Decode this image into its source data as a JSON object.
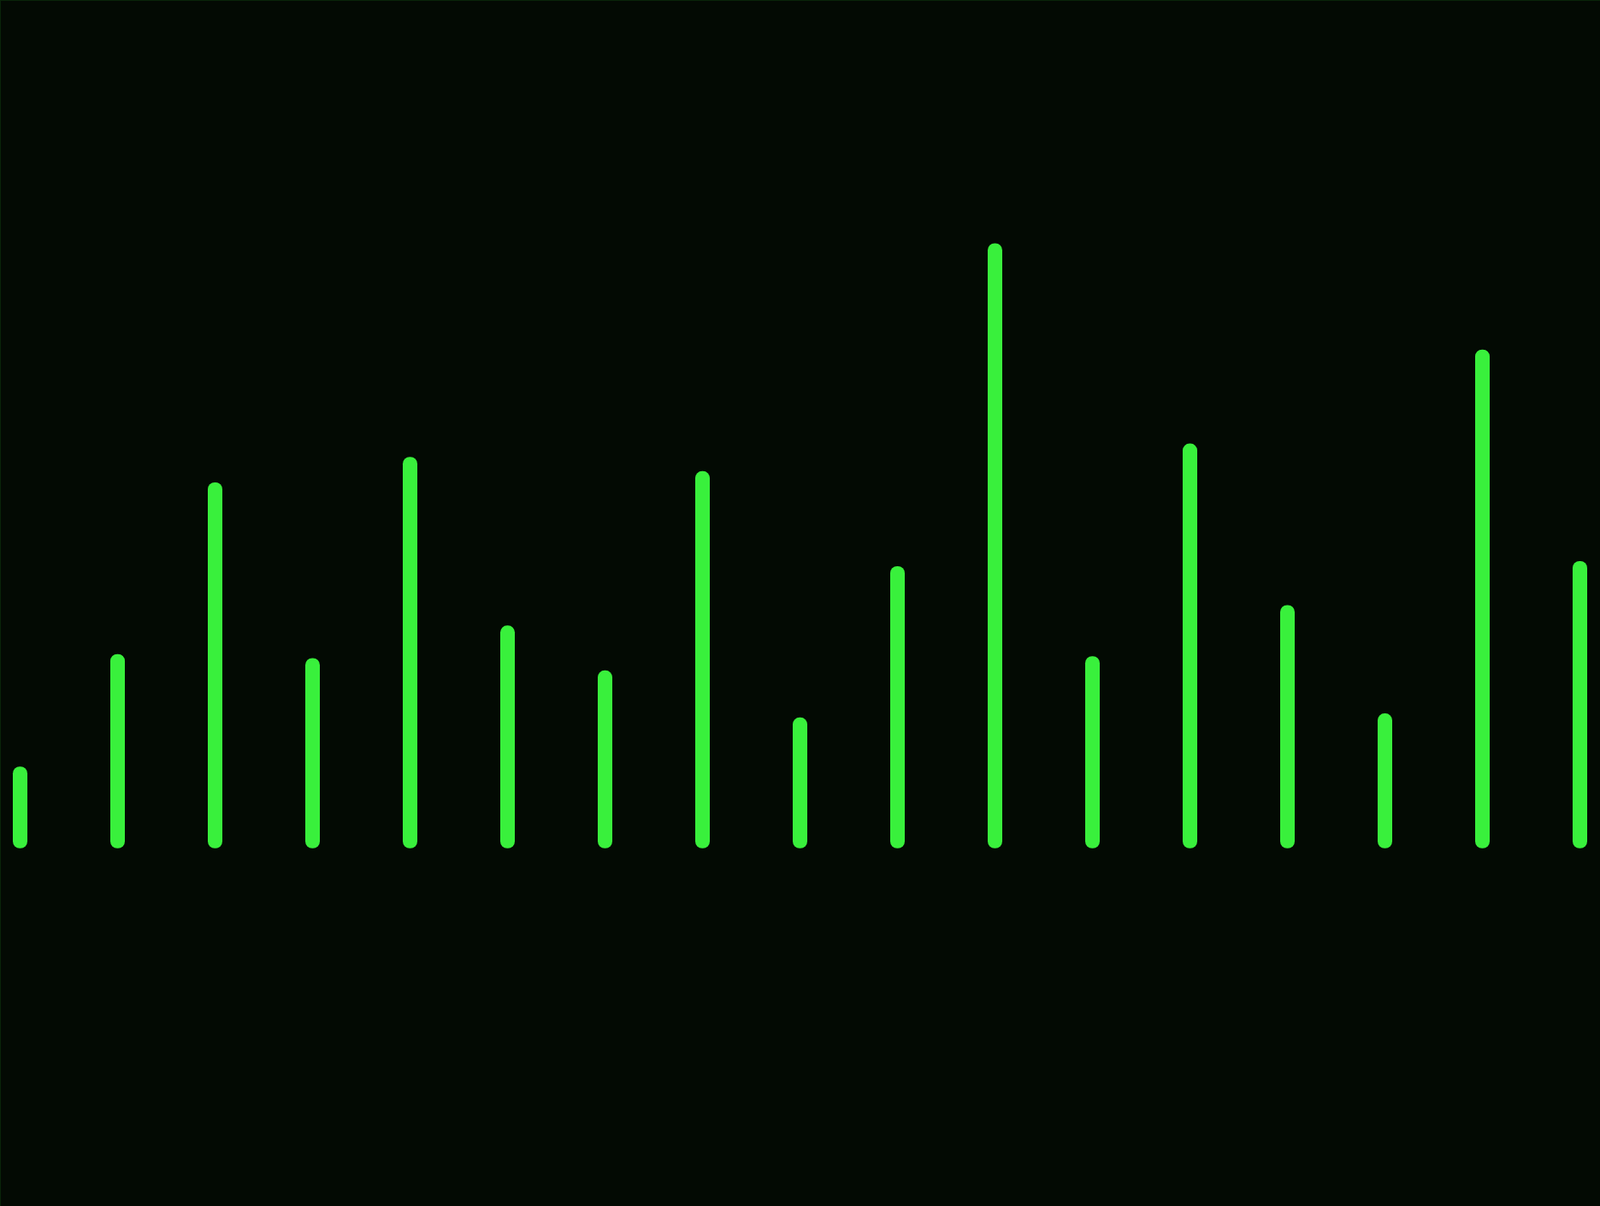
{
  "chart_data": {
    "type": "bar",
    "categories": [
      null,
      null,
      null,
      null,
      null,
      null,
      null,
      null,
      null,
      null,
      null,
      null,
      null,
      null,
      null,
      null,
      null
    ],
    "values": [
      80,
      190,
      358,
      186,
      383,
      218,
      174,
      369,
      128,
      276,
      592,
      188,
      396,
      238,
      132,
      488,
      281
    ],
    "color": "#39f03c",
    "ylim": [
      -350,
      830
    ],
    "yticks": [],
    "grid": false,
    "tick_labels": false
  }
}
